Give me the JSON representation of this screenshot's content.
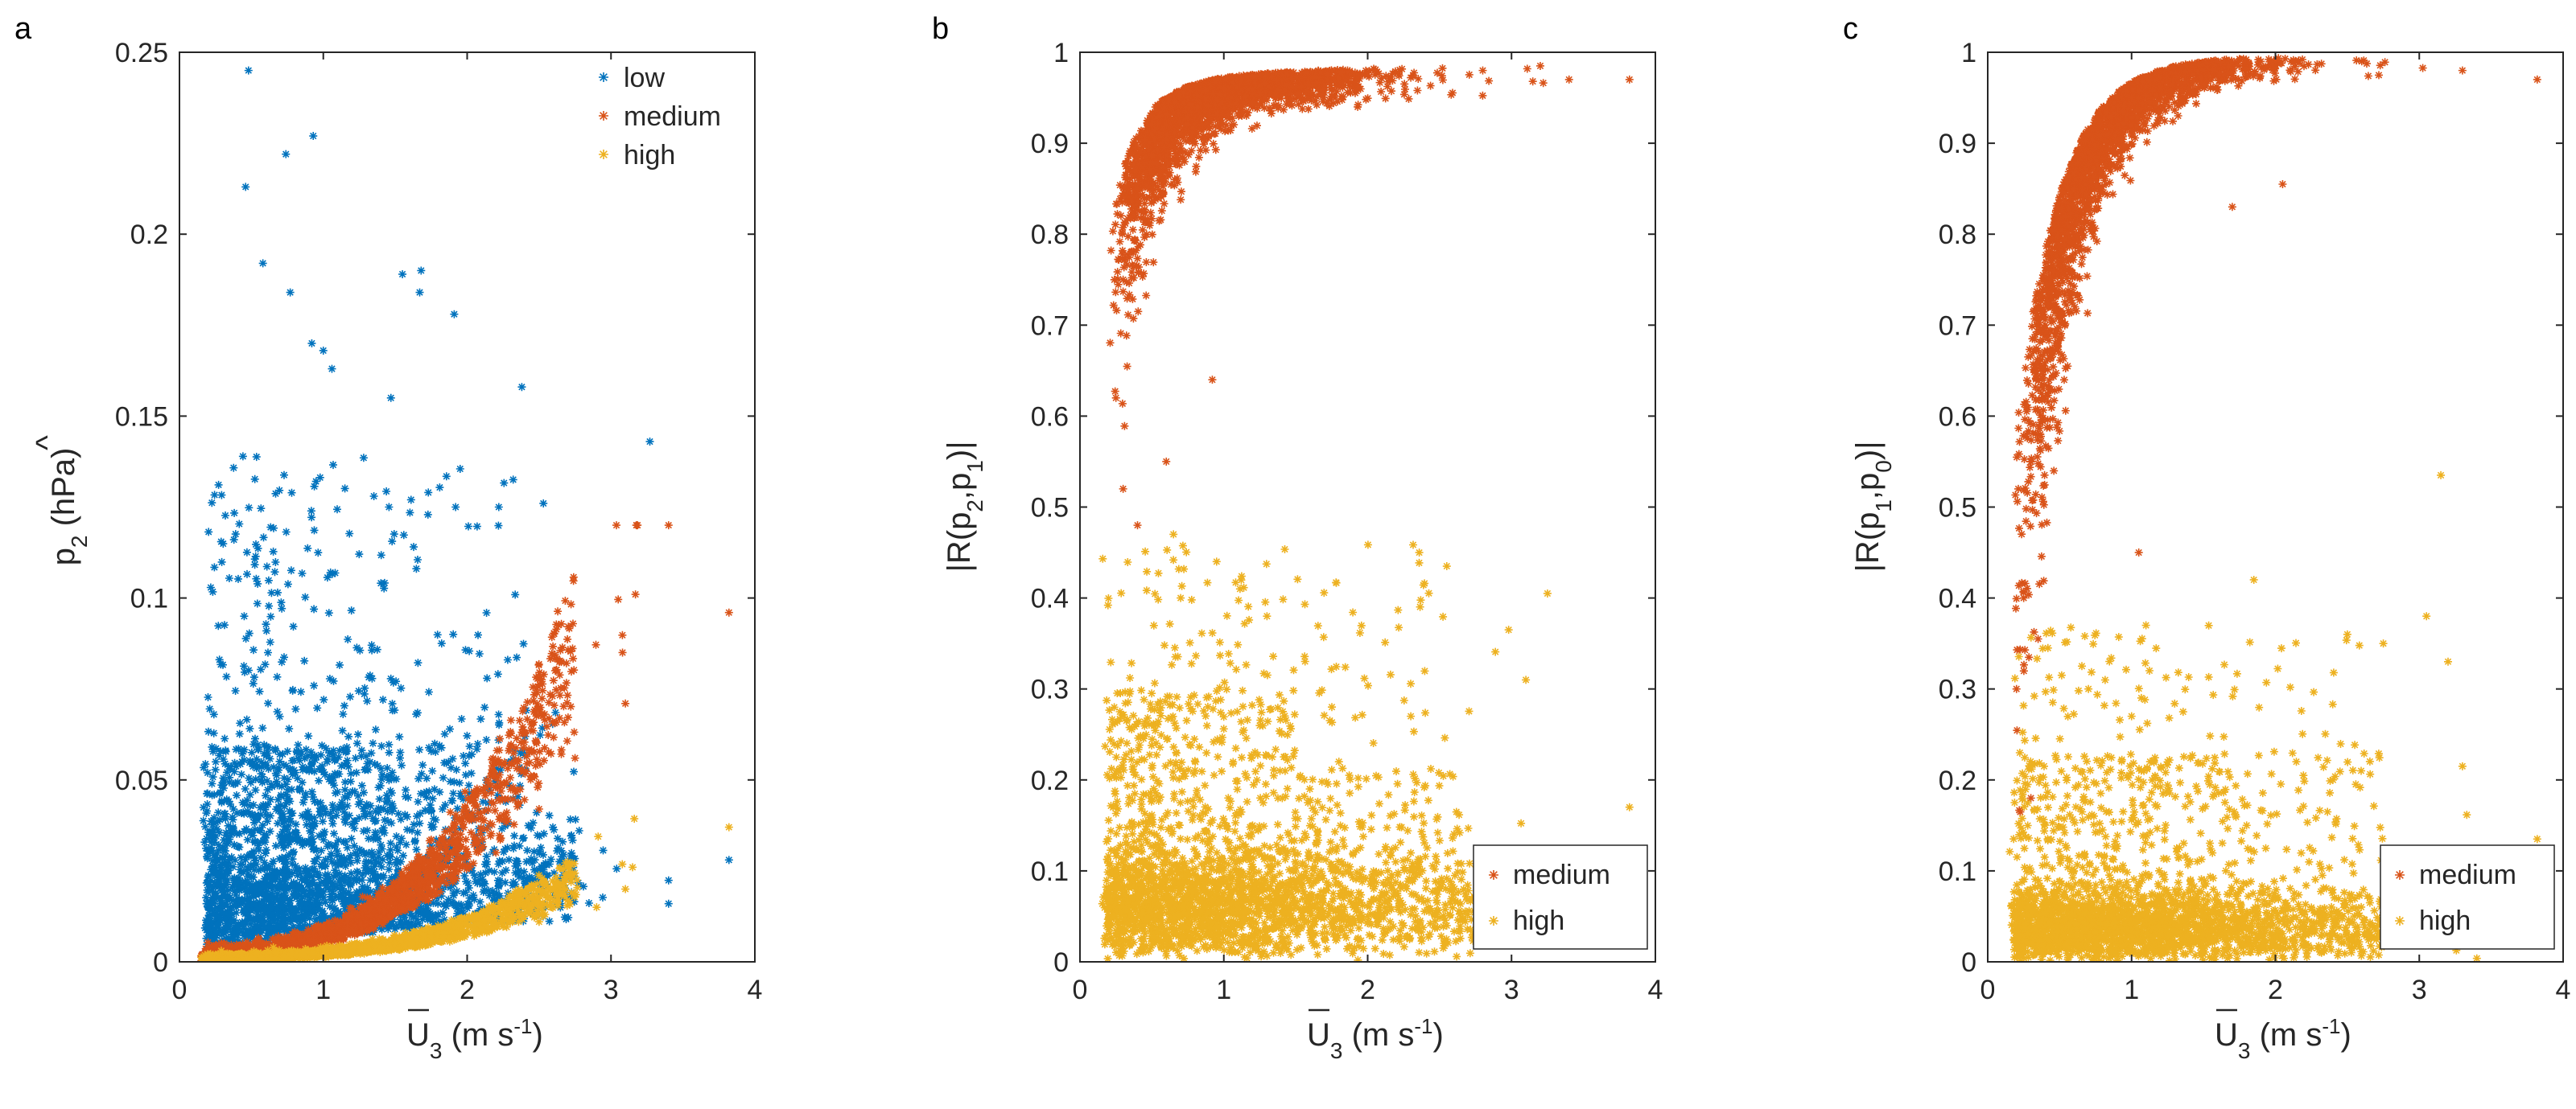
{
  "chart_data": [
    {
      "type": "scatter",
      "panel_label": "a",
      "xlabel": "U",
      "xlabel_sub": "3",
      "xlabel_unit": " (m s",
      "xlabel_exp": "-1",
      "xlabel_end": ")",
      "ylabel": "p",
      "ylabel_sub": "2",
      "ylabel_unit": " (hPa)",
      "xlim": [
        0,
        4
      ],
      "ylim": [
        0,
        0.25
      ],
      "xticks": [
        "0",
        "1",
        "2",
        "3",
        "4"
      ],
      "yticks": [
        "0",
        "0.05",
        "0.1",
        "0.15",
        "0.2",
        "0.25"
      ],
      "legend_position": "top-right",
      "series": [
        {
          "name": "low",
          "color": "#0072BD",
          "n": 2600,
          "model": "lowp2",
          "sample_points": [
            [
              0.48,
              0.245
            ],
            [
              0.93,
              0.227
            ],
            [
              0.74,
              0.222
            ],
            [
              0.46,
              0.213
            ],
            [
              0.58,
              0.192
            ],
            [
              0.77,
              0.184
            ],
            [
              1.55,
              0.189
            ],
            [
              1.68,
              0.19
            ],
            [
              1.67,
              0.184
            ],
            [
              1.91,
              0.178
            ],
            [
              0.92,
              0.17
            ],
            [
              1.0,
              0.168
            ],
            [
              1.06,
              0.163
            ],
            [
              1.47,
              0.155
            ],
            [
              2.38,
              0.158
            ],
            [
              3.27,
              0.143
            ],
            [
              1.73,
              0.129
            ],
            [
              1.61,
              0.127
            ],
            [
              1.92,
              0.125
            ],
            [
              2.22,
              0.125
            ],
            [
              2.53,
              0.126
            ],
            [
              1.05,
              0.107
            ],
            [
              0.45,
              0.095
            ],
            [
              3.82,
              0.028
            ]
          ]
        },
        {
          "name": "medium",
          "color": "#D95319",
          "n": 2200,
          "model": "medp2",
          "sample_points": [
            [
              3.82,
              0.096
            ],
            [
              3.17,
              0.101
            ],
            [
              3.08,
              0.085
            ],
            [
              3.1,
              0.071
            ],
            [
              2.75,
              0.056
            ],
            [
              2.5,
              0.042
            ],
            [
              2.2,
              0.03
            ],
            [
              1.9,
              0.022
            ],
            [
              1.6,
              0.015
            ],
            [
              1.2,
              0.009
            ],
            [
              0.8,
              0.005
            ],
            [
              0.4,
              0.002
            ]
          ]
        },
        {
          "name": "high",
          "color": "#EDB120",
          "n": 2400,
          "model": "highp2",
          "sample_points": [
            [
              3.82,
              0.037
            ],
            [
              3.15,
              0.026
            ],
            [
              3.1,
              0.02
            ],
            [
              2.9,
              0.015
            ],
            [
              2.5,
              0.011
            ],
            [
              2.0,
              0.008
            ],
            [
              1.5,
              0.005
            ],
            [
              1.0,
              0.003
            ],
            [
              0.5,
              0.001
            ]
          ]
        }
      ]
    },
    {
      "type": "scatter",
      "panel_label": "b",
      "xlabel": "U",
      "xlabel_sub": "3",
      "xlabel_unit": " (m s",
      "xlabel_exp": "-1",
      "xlabel_end": ")",
      "ylabel": "|R(p",
      "ylabel_sub": "2",
      "ylabel_mid": ",p",
      "ylabel_sub2": "1",
      "ylabel_end": ")|",
      "xlim": [
        0,
        4
      ],
      "ylim": [
        0,
        1
      ],
      "xticks": [
        "0",
        "1",
        "2",
        "3",
        "4"
      ],
      "yticks": [
        "0",
        "0.1",
        "0.2",
        "0.3",
        "0.4",
        "0.5",
        "0.6",
        "0.7",
        "0.8",
        "0.9",
        "1"
      ],
      "legend_position": "bottom-right",
      "series": [
        {
          "name": "medium",
          "color": "#D95319",
          "n": 2300,
          "model": "medRb",
          "sample_points": [
            [
              3.82,
              0.97
            ],
            [
              3.4,
              0.97
            ],
            [
              3.2,
              0.985
            ],
            [
              2.8,
              0.98
            ],
            [
              2.0,
              0.975
            ],
            [
              1.0,
              0.96
            ],
            [
              0.6,
              0.92
            ],
            [
              0.4,
              0.85
            ],
            [
              0.3,
              0.75
            ],
            [
              0.25,
              0.62
            ],
            [
              0.3,
              0.52
            ],
            [
              0.4,
              0.48
            ],
            [
              0.6,
              0.55
            ],
            [
              0.92,
              0.64
            ]
          ]
        },
        {
          "name": "high",
          "color": "#EDB120",
          "n": 2600,
          "model": "highRb",
          "sample_points": [
            [
              0.65,
              0.47
            ],
            [
              0.95,
              0.44
            ],
            [
              0.7,
              0.4
            ],
            [
              1.3,
              0.38
            ],
            [
              2.55,
              0.435
            ],
            [
              3.25,
              0.405
            ],
            [
              2.98,
              0.365
            ],
            [
              3.1,
              0.31
            ],
            [
              3.82,
              0.17
            ],
            [
              2.3,
              0.27
            ],
            [
              1.8,
              0.22
            ],
            [
              1.2,
              0.15
            ],
            [
              0.5,
              0.05
            ],
            [
              2.0,
              0.05
            ]
          ]
        }
      ]
    },
    {
      "type": "scatter",
      "panel_label": "c",
      "xlabel": "U",
      "xlabel_sub": "3",
      "xlabel_unit": " (m s",
      "xlabel_exp": "-1",
      "xlabel_end": ")",
      "ylabel": "|R(p",
      "ylabel_sub": "1",
      "ylabel_mid": ",p",
      "ylabel_sub2": "0",
      "ylabel_end": ")|",
      "xlim": [
        0,
        4
      ],
      "ylim": [
        0,
        1
      ],
      "xticks": [
        "0",
        "1",
        "2",
        "3",
        "4"
      ],
      "yticks": [
        "0",
        "0.1",
        "0.2",
        "0.3",
        "0.4",
        "0.5",
        "0.6",
        "0.7",
        "0.8",
        "0.9",
        "1"
      ],
      "legend_position": "bottom-right",
      "series": [
        {
          "name": "medium",
          "color": "#D95319",
          "n": 2300,
          "model": "medRc",
          "sample_points": [
            [
              3.82,
              0.97
            ],
            [
              3.3,
              0.98
            ],
            [
              2.6,
              0.99
            ],
            [
              2.0,
              0.99
            ],
            [
              1.5,
              0.98
            ],
            [
              1.0,
              0.95
            ],
            [
              0.6,
              0.85
            ],
            [
              0.4,
              0.7
            ],
            [
              0.3,
              0.55
            ],
            [
              0.25,
              0.4
            ],
            [
              0.2,
              0.3
            ],
            [
              0.3,
              0.18
            ],
            [
              1.05,
              0.45
            ],
            [
              2.05,
              0.855
            ],
            [
              1.7,
              0.83
            ]
          ]
        },
        {
          "name": "high",
          "color": "#EDB120",
          "n": 2600,
          "model": "highRc",
          "sample_points": [
            [
              3.15,
              0.535
            ],
            [
              1.85,
              0.42
            ],
            [
              1.1,
              0.37
            ],
            [
              3.05,
              0.38
            ],
            [
              2.5,
              0.36
            ],
            [
              2.75,
              0.35
            ],
            [
              3.2,
              0.33
            ],
            [
              0.7,
              0.3
            ],
            [
              1.0,
              0.27
            ],
            [
              3.3,
              0.215
            ],
            [
              3.82,
              0.135
            ],
            [
              2.4,
              0.2
            ],
            [
              1.8,
              0.15
            ],
            [
              0.6,
              0.1
            ],
            [
              1.5,
              0.03
            ]
          ]
        }
      ]
    }
  ]
}
